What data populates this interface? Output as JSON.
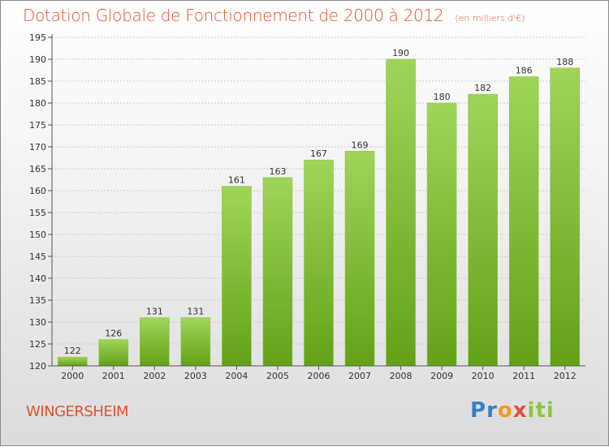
{
  "title": "Dotation Globale de Fonctionnement de 2000 à 2012",
  "unit": "(en milliers d'€)",
  "commune": "WINGERSHEIM",
  "logo": {
    "letters": [
      "P",
      "r",
      "o",
      "x",
      "i",
      "t",
      "i"
    ],
    "colors": [
      "#3b7fc4",
      "#3b7fc4",
      "#f39a1e",
      "#e74c3c",
      "#8cc63f",
      "#8cc63f",
      "#8cc63f"
    ]
  },
  "colors": {
    "bar_light": "#9fd55a",
    "bar_dark": "#63a117",
    "title": "#e0522c",
    "grid": "#c8c8c8"
  },
  "chart_data": {
    "type": "bar",
    "categories": [
      "2000",
      "2001",
      "2002",
      "2003",
      "2004",
      "2005",
      "2006",
      "2007",
      "2008",
      "2009",
      "2010",
      "2011",
      "2012"
    ],
    "values": [
      122,
      126,
      131,
      131,
      161,
      163,
      167,
      169,
      190,
      180,
      182,
      186,
      188
    ],
    "ylim": [
      120,
      195
    ],
    "yticks": [
      120,
      125,
      130,
      135,
      140,
      145,
      150,
      155,
      160,
      165,
      170,
      175,
      180,
      185,
      190,
      195
    ],
    "grid": true,
    "xlabel": "",
    "ylabel": ""
  }
}
